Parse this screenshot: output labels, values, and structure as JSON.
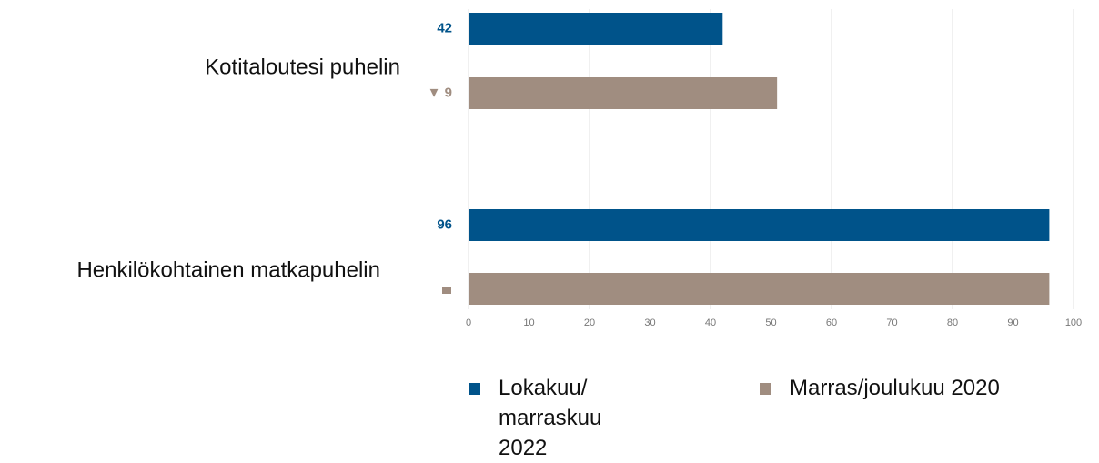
{
  "chart_data": {
    "type": "bar",
    "orientation": "horizontal",
    "categories": [
      "Kotitaloutesi puhelin",
      "Henkilökohtainen matkapuhelin"
    ],
    "series": [
      {
        "name": "Lokakuu/ marraskuu 2022",
        "color": "#00538a",
        "values": [
          42,
          96
        ]
      },
      {
        "name": "Marras/joulukuu 2020",
        "color": "#a08d80",
        "values": [
          51,
          96
        ]
      }
    ],
    "change_labels": [
      "▼ 9",
      null
    ],
    "xlim": [
      0,
      100
    ],
    "xticks": [
      0,
      10,
      20,
      30,
      40,
      50,
      60,
      70,
      80,
      90,
      100
    ],
    "grid": true
  }
}
